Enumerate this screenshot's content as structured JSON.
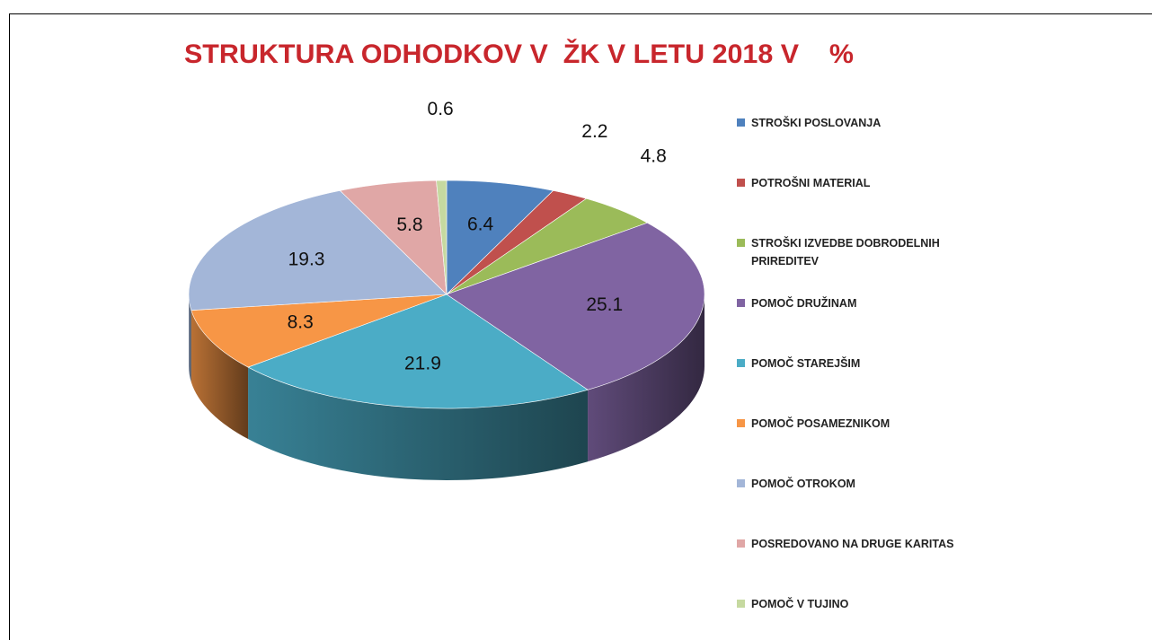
{
  "chart_data": {
    "type": "pie3d",
    "title": "STRUKTURA ODHODKOV V  ŽK V LETU 2018 V    %",
    "categories": [
      "STROŠKI POSLOVANJA",
      "POTROŠNI MATERIAL",
      "STROŠKI IZVEDBE DOBRODELNIH PRIREDITEV",
      "POMOČ DRUŽINAM",
      "POMOČ STAREJŠIM",
      "POMOČ POSAMEZNIKOM",
      "POMOČ OTROKOM",
      "POSREDOVANO NA DRUGE KARITAS",
      "POMOČ V TUJINO"
    ],
    "values": [
      6.4,
      2.2,
      4.8,
      25.1,
      21.9,
      8.3,
      19.3,
      5.8,
      0.6
    ],
    "colors": [
      "#4f81bd",
      "#c0504d",
      "#9bbb59",
      "#8064a2",
      "#4bacc6",
      "#f79646",
      "#a3b6d8",
      "#e0a7a6",
      "#c6d9a0"
    ],
    "legend": "right"
  }
}
